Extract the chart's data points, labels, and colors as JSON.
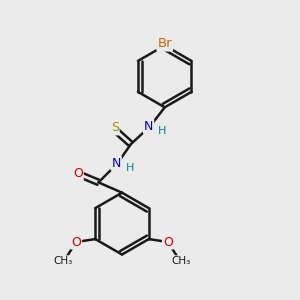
{
  "bg_color": "#ebebeb",
  "bond_color": "#1a1a1a",
  "bond_width": 1.8,
  "atom_colors": {
    "Br": "#cc6600",
    "N": "#0000cc",
    "S": "#999900",
    "O": "#cc0000",
    "H": "#008888",
    "C": "#1a1a1a"
  },
  "font_size": 9
}
